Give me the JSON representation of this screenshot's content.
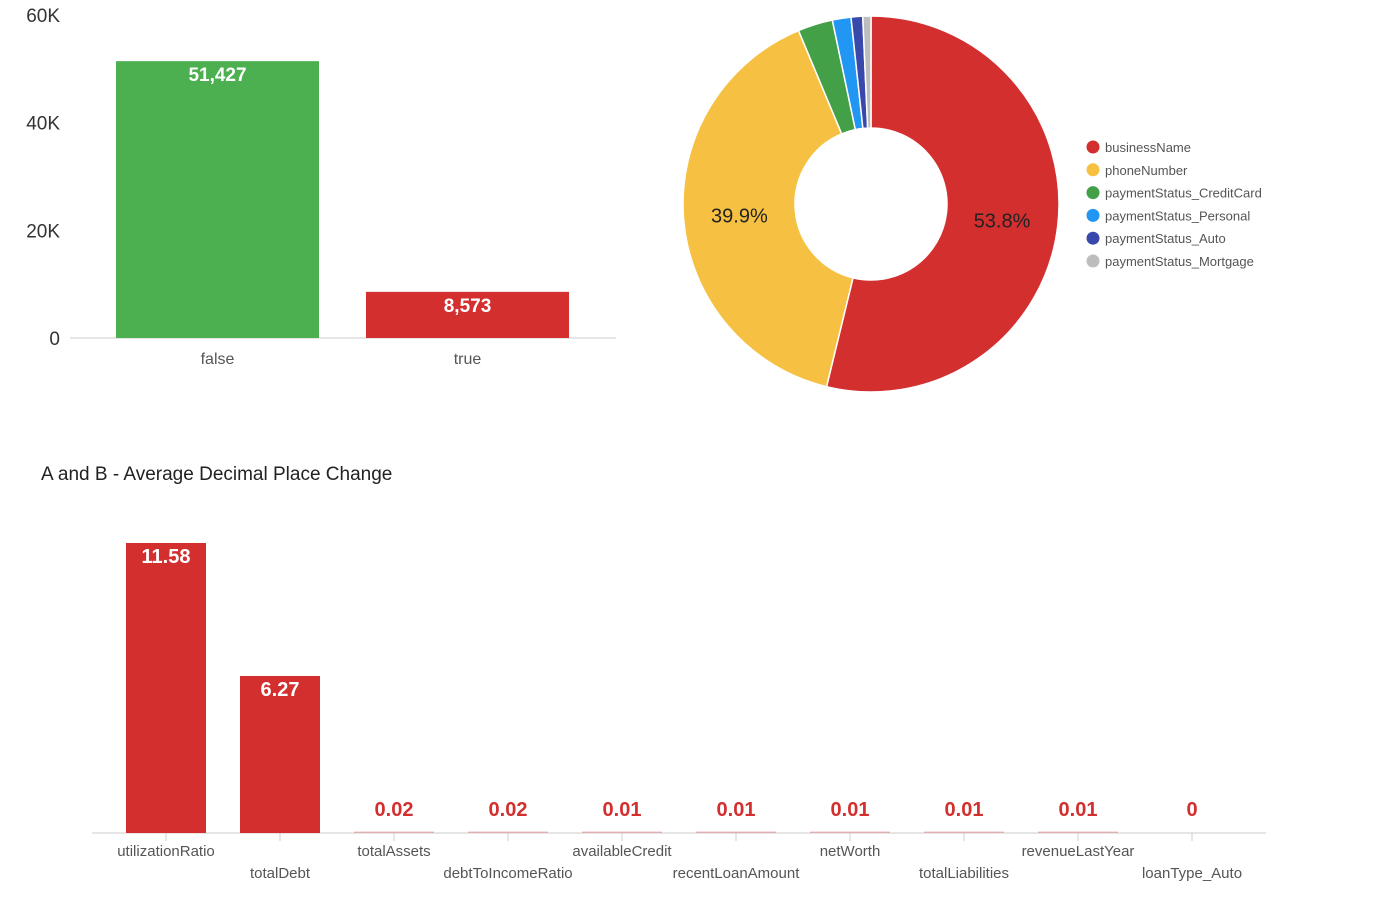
{
  "chart_data": [
    {
      "type": "bar",
      "title": "",
      "categories": [
        "false",
        "true"
      ],
      "values": [
        51427,
        8573
      ],
      "value_labels": [
        "51,427",
        "8,573"
      ],
      "colors": [
        "#4caf50",
        "#d32f2f"
      ],
      "ylim": [
        0,
        60000
      ],
      "yticks": [
        0,
        20000,
        40000,
        60000
      ],
      "ytick_labels": [
        "0",
        "20K",
        "40K",
        "60K"
      ],
      "grid": false
    },
    {
      "type": "pie",
      "donut": true,
      "labels": [
        "businessName",
        "phoneNumber",
        "paymentStatus_CreditCard",
        "paymentStatus_Personal",
        "paymentStatus_Auto",
        "paymentStatus_Mortgage"
      ],
      "values": [
        53.8,
        39.9,
        3.0,
        1.6,
        1.0,
        0.7
      ],
      "slice_labels": [
        "53.8%",
        "39.9%",
        "",
        "",
        "",
        ""
      ],
      "colors": [
        "#d32f2f",
        "#f6c142",
        "#43a047",
        "#2196f3",
        "#3949ab",
        "#bdbdbd"
      ],
      "legend": "right"
    },
    {
      "type": "bar",
      "title": "A and B - Average Decimal Place Change",
      "categories": [
        "utilizationRatio",
        "totalDebt",
        "totalAssets",
        "debtToIncomeRatio",
        "availableCredit",
        "recentLoanAmount",
        "netWorth",
        "totalLiabilities",
        "revenueLastYear",
        "loanType_Auto"
      ],
      "values": [
        11.58,
        6.27,
        0.02,
        0.02,
        0.01,
        0.01,
        0.01,
        0.01,
        0.01,
        0
      ],
      "value_labels": [
        "11.58",
        "6.27",
        "0.02",
        "0.02",
        "0.01",
        "0.01",
        "0.01",
        "0.01",
        "0.01",
        "0"
      ],
      "color": "#d32f2f",
      "ylim": [
        0,
        11.58
      ]
    }
  ]
}
